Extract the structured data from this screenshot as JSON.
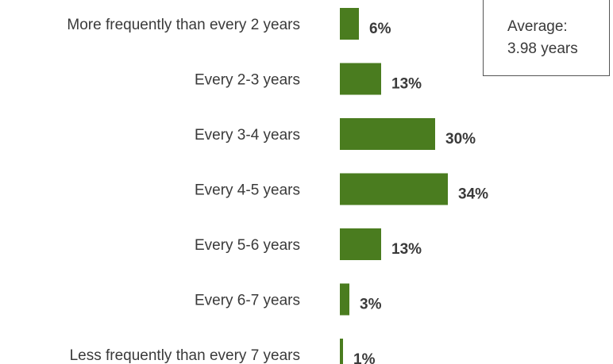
{
  "chart_data": {
    "type": "bar",
    "orientation": "horizontal",
    "categories": [
      "More frequently than every 2 years",
      "Every 2-3 years",
      "Every 3-4 years",
      "Every 4-5 years",
      "Every 5-6 years",
      "Every 6-7 years",
      "Less frequently than every 7 years"
    ],
    "values": [
      6,
      13,
      30,
      34,
      13,
      3,
      1
    ],
    "value_labels": [
      "6%",
      "13%",
      "30%",
      "34%",
      "13%",
      "3%",
      "1%"
    ],
    "unit": "%",
    "bar_color": "#4a7c1f",
    "grid": false,
    "legend": "none"
  },
  "annotation": {
    "line1": "Average:",
    "line2": "3.98 years"
  }
}
